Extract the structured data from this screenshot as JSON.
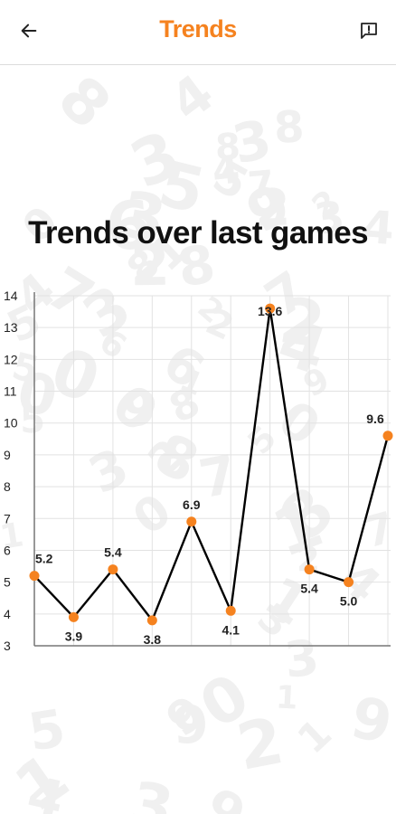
{
  "header": {
    "title": "Trends",
    "back_icon": "arrow-left-icon",
    "feedback_icon": "feedback-icon"
  },
  "colors": {
    "accent": "#f5821f",
    "line": "#000000",
    "grid": "#e2e2e2",
    "axis": "#777777"
  },
  "chart_data": {
    "type": "line",
    "title": "Trends over last games",
    "xlabel": "",
    "ylabel": "",
    "ylim": [
      3,
      14
    ],
    "yticks": [
      3,
      4,
      5,
      6,
      7,
      8,
      9,
      10,
      11,
      12,
      13,
      14
    ],
    "grid": true,
    "series": [
      {
        "values": [
          5.2,
          3.9,
          5.4,
          3.8,
          6.9,
          4.1,
          13.6,
          5.4,
          5.0,
          9.6
        ],
        "labels": [
          "5.2",
          "3.9",
          "5.4",
          "3.8",
          "6.9",
          "4.1",
          "13.6",
          "5.4",
          "5.0",
          "9.6"
        ],
        "label_positions": [
          "above",
          "below",
          "above",
          "below",
          "above",
          "below",
          "below",
          "below",
          "below",
          "above"
        ]
      }
    ]
  }
}
